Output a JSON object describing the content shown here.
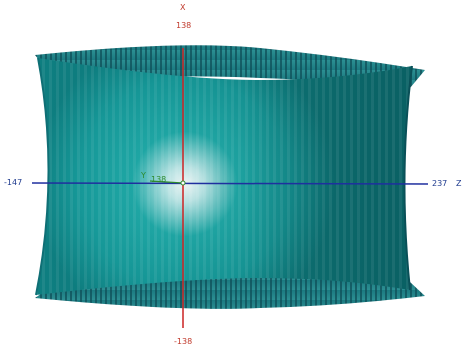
{
  "viewport": {
    "axes": {
      "x": {
        "name": "X",
        "max_label": "138",
        "min_label": "-138",
        "color": "#cc2222"
      },
      "z": {
        "name": "Z",
        "max_label": "237",
        "min_label": "-147",
        "color": "#1f2f9f"
      },
      "y": {
        "name": "Y",
        "label": "138",
        "color": "#2e8b2e"
      }
    },
    "model": {
      "color": "#1aa8a8",
      "shadow_color": "#0d5f66",
      "highlight_color": "#f2fbfb"
    }
  }
}
